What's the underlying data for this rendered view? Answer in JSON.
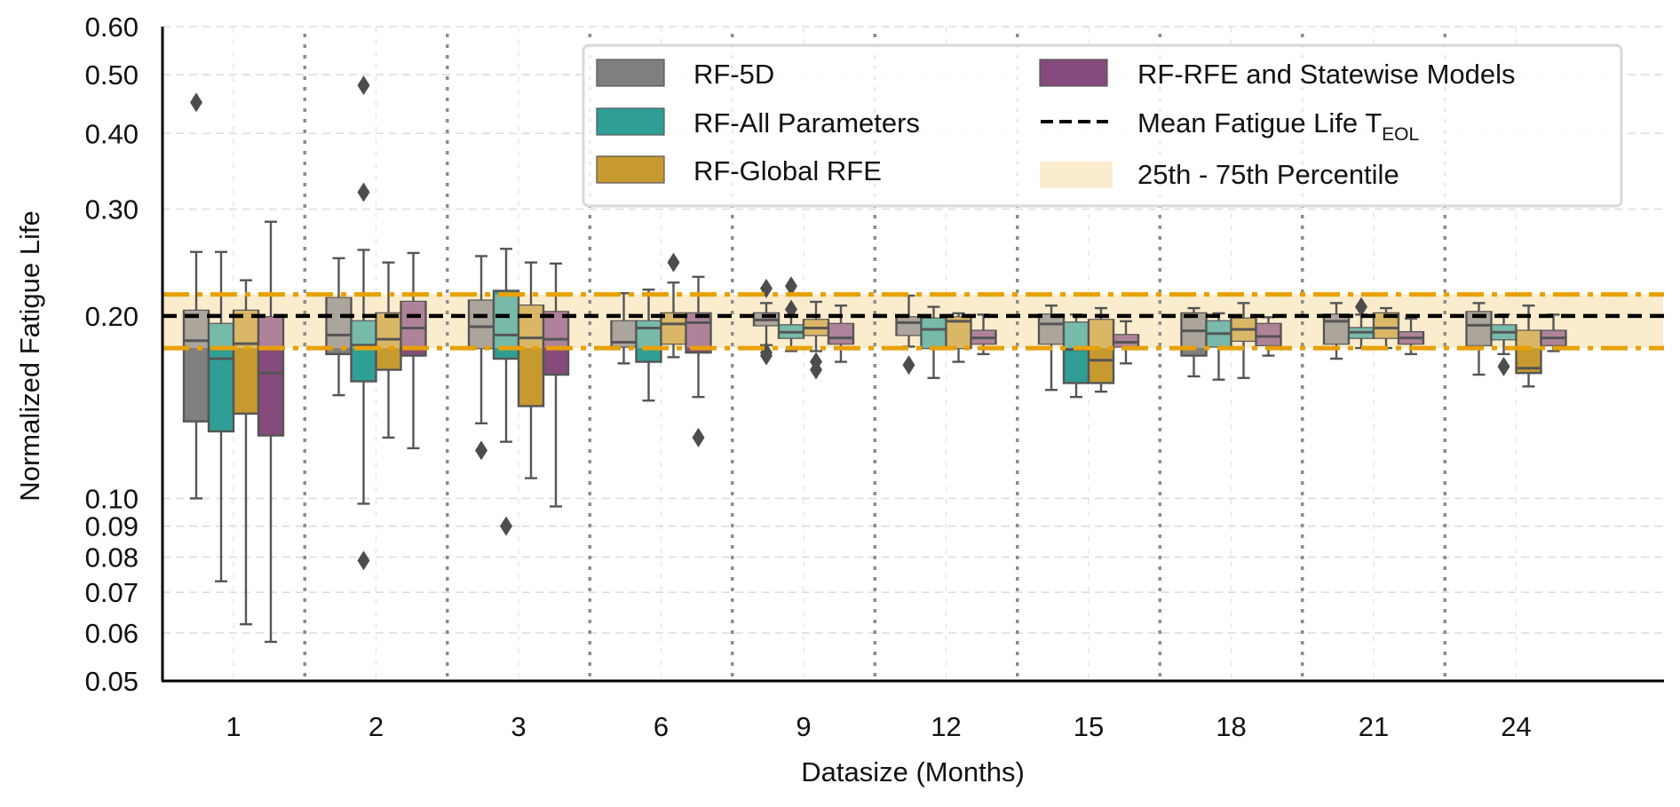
{
  "chart_data": {
    "type": "box",
    "title": "",
    "xlabel": "Datasize (Months)",
    "ylabel": "Normalized Fatigue Life",
    "yscale": "log",
    "ylim": [
      0.05,
      0.6
    ],
    "yticks": [
      0.05,
      0.06,
      0.07,
      0.08,
      0.09,
      0.1,
      0.2,
      0.3,
      0.4,
      0.5,
      0.6
    ],
    "ytick_labels": [
      "0.05",
      "0.06",
      "0.07",
      "0.08",
      "0.09",
      "0.10",
      "0.20",
      "0.30",
      "0.40",
      "0.50",
      "0.60"
    ],
    "categories": [
      "1",
      "2",
      "3",
      "6",
      "9",
      "12",
      "15",
      "18",
      "21",
      "24"
    ],
    "grid": "horizontal dashed light-gray; dotted gray separators between categories",
    "legend_position": "top-right (inside, 2 columns)",
    "reference_lines": {
      "mean": {
        "label_main": "Mean Fatigue Life T",
        "label_sub": "EOL",
        "value": 0.2,
        "color": "#000000",
        "style": "dashed"
      },
      "band": {
        "label": "25th - 75th Percentile",
        "low": 0.177,
        "high": 0.217,
        "fill": "#fcecce",
        "edge_color": "#e8a000",
        "edge_style": "dash-dot"
      }
    },
    "series": [
      {
        "name": "RF-5D",
        "color": "#7f7f7f",
        "boxes": [
          {
            "whislo": 0.1,
            "q1": 0.134,
            "med": 0.182,
            "q3": 0.204,
            "whishi": 0.255,
            "fliers": [
              0.45
            ]
          },
          {
            "whislo": 0.148,
            "q1": 0.173,
            "med": 0.186,
            "q3": 0.214,
            "whishi": 0.249,
            "fliers": []
          },
          {
            "whislo": 0.133,
            "q1": 0.177,
            "med": 0.192,
            "q3": 0.212,
            "whishi": 0.251,
            "fliers": [
              0.12
            ]
          },
          {
            "whislo": 0.167,
            "q1": 0.178,
            "med": 0.181,
            "q3": 0.196,
            "whishi": 0.218,
            "fliers": []
          },
          {
            "whislo": 0.179,
            "q1": 0.193,
            "med": 0.197,
            "q3": 0.202,
            "whishi": 0.21,
            "fliers": [
              0.222,
              0.174,
              0.172
            ]
          },
          {
            "whislo": 0.178,
            "q1": 0.186,
            "med": 0.195,
            "q3": 0.199,
            "whishi": 0.216,
            "fliers": [
              0.166
            ]
          },
          {
            "whislo": 0.151,
            "q1": 0.18,
            "med": 0.194,
            "q3": 0.201,
            "whishi": 0.208,
            "fliers": []
          },
          {
            "whislo": 0.159,
            "q1": 0.172,
            "med": 0.189,
            "q3": 0.202,
            "whishi": 0.206,
            "fliers": []
          },
          {
            "whislo": 0.17,
            "q1": 0.18,
            "med": 0.196,
            "q3": 0.201,
            "whishi": 0.21,
            "fliers": []
          },
          {
            "whislo": 0.16,
            "q1": 0.179,
            "med": 0.193,
            "q3": 0.203,
            "whishi": 0.21,
            "fliers": []
          }
        ]
      },
      {
        "name": "RF-All Parameters",
        "color": "#2f9f96",
        "boxes": [
          {
            "whislo": 0.073,
            "q1": 0.129,
            "med": 0.17,
            "q3": 0.194,
            "whishi": 0.255,
            "fliers": []
          },
          {
            "whislo": 0.098,
            "q1": 0.156,
            "med": 0.179,
            "q3": 0.196,
            "whishi": 0.257,
            "fliers": [
              0.48,
              0.32,
              0.079
            ]
          },
          {
            "whislo": 0.124,
            "q1": 0.17,
            "med": 0.186,
            "q3": 0.22,
            "whishi": 0.258,
            "fliers": [
              0.09
            ]
          },
          {
            "whislo": 0.145,
            "q1": 0.168,
            "med": 0.191,
            "q3": 0.196,
            "whishi": 0.221,
            "fliers": []
          },
          {
            "whislo": 0.175,
            "q1": 0.184,
            "med": 0.188,
            "q3": 0.193,
            "whishi": 0.2,
            "fliers": [
              0.224,
              0.205
            ]
          },
          {
            "whislo": 0.158,
            "q1": 0.177,
            "med": 0.19,
            "q3": 0.198,
            "whishi": 0.207,
            "fliers": []
          },
          {
            "whislo": 0.147,
            "q1": 0.155,
            "med": 0.176,
            "q3": 0.195,
            "whishi": 0.201,
            "fliers": []
          },
          {
            "whislo": 0.157,
            "q1": 0.178,
            "med": 0.187,
            "q3": 0.196,
            "whishi": 0.202,
            "fliers": []
          },
          {
            "whislo": 0.177,
            "q1": 0.184,
            "med": 0.188,
            "q3": 0.191,
            "whishi": 0.201,
            "fliers": [
              0.207
            ]
          },
          {
            "whislo": 0.173,
            "q1": 0.183,
            "med": 0.188,
            "q3": 0.193,
            "whishi": 0.201,
            "fliers": [
              0.165
            ]
          }
        ]
      },
      {
        "name": "RF-Global RFE",
        "color": "#c79a30",
        "boxes": [
          {
            "whislo": 0.062,
            "q1": 0.138,
            "med": 0.18,
            "q3": 0.204,
            "whishi": 0.229,
            "fliers": []
          },
          {
            "whislo": 0.126,
            "q1": 0.163,
            "med": 0.183,
            "q3": 0.202,
            "whishi": 0.245,
            "fliers": []
          },
          {
            "whislo": 0.108,
            "q1": 0.142,
            "med": 0.184,
            "q3": 0.208,
            "whishi": 0.245,
            "fliers": []
          },
          {
            "whislo": 0.171,
            "q1": 0.18,
            "med": 0.194,
            "q3": 0.202,
            "whishi": 0.227,
            "fliers": [
              0.245
            ]
          },
          {
            "whislo": 0.175,
            "q1": 0.186,
            "med": 0.191,
            "q3": 0.197,
            "whishi": 0.211,
            "fliers": [
              0.168,
              0.163
            ]
          },
          {
            "whislo": 0.168,
            "q1": 0.177,
            "med": 0.196,
            "q3": 0.199,
            "whishi": 0.202,
            "fliers": []
          },
          {
            "whislo": 0.15,
            "q1": 0.155,
            "med": 0.169,
            "q3": 0.197,
            "whishi": 0.206,
            "fliers": []
          },
          {
            "whislo": 0.158,
            "q1": 0.182,
            "med": 0.19,
            "q3": 0.198,
            "whishi": 0.21,
            "fliers": []
          },
          {
            "whislo": 0.177,
            "q1": 0.184,
            "med": 0.191,
            "q3": 0.202,
            "whishi": 0.206,
            "fliers": []
          },
          {
            "whislo": 0.153,
            "q1": 0.161,
            "med": 0.164,
            "q3": 0.189,
            "whishi": 0.208,
            "fliers": []
          }
        ]
      },
      {
        "name": "RF-RFE and Statewise Models",
        "color": "#844b7c",
        "boxes": [
          {
            "whislo": 0.058,
            "q1": 0.127,
            "med": 0.161,
            "q3": 0.199,
            "whishi": 0.286,
            "fliers": []
          },
          {
            "whislo": 0.121,
            "q1": 0.172,
            "med": 0.191,
            "q3": 0.211,
            "whishi": 0.254,
            "fliers": []
          },
          {
            "whislo": 0.097,
            "q1": 0.16,
            "med": 0.183,
            "q3": 0.203,
            "whishi": 0.244,
            "fliers": []
          },
          {
            "whislo": 0.147,
            "q1": 0.174,
            "med": 0.195,
            "q3": 0.202,
            "whishi": 0.232,
            "fliers": [
              0.126
            ]
          },
          {
            "whislo": 0.168,
            "q1": 0.18,
            "med": 0.184,
            "q3": 0.194,
            "whishi": 0.208,
            "fliers": []
          },
          {
            "whislo": 0.173,
            "q1": 0.18,
            "med": 0.184,
            "q3": 0.189,
            "whishi": 0.201,
            "fliers": []
          },
          {
            "whislo": 0.167,
            "q1": 0.178,
            "med": 0.181,
            "q3": 0.186,
            "whishi": 0.196,
            "fliers": []
          },
          {
            "whislo": 0.172,
            "q1": 0.179,
            "med": 0.185,
            "q3": 0.194,
            "whishi": 0.199,
            "fliers": []
          },
          {
            "whislo": 0.173,
            "q1": 0.18,
            "med": 0.184,
            "q3": 0.188,
            "whishi": 0.198,
            "fliers": []
          },
          {
            "whislo": 0.175,
            "q1": 0.179,
            "med": 0.184,
            "q3": 0.189,
            "whishi": 0.201,
            "fliers": []
          }
        ]
      }
    ]
  }
}
